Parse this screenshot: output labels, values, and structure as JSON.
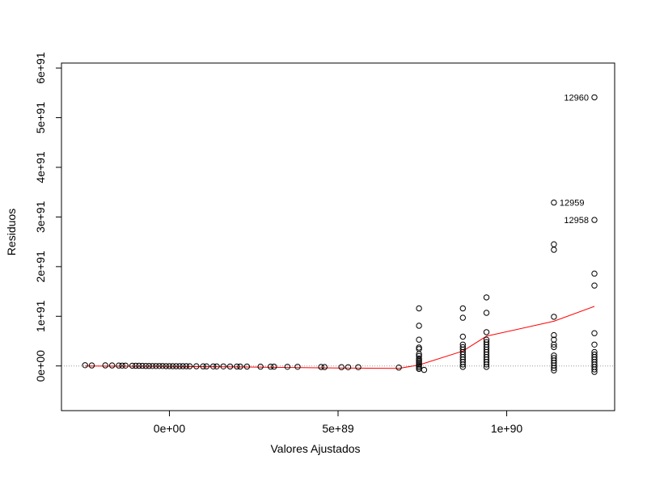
{
  "chart_data": {
    "type": "scatter",
    "title": "",
    "xlabel": "Valores Ajustados",
    "ylabel": "Residuos",
    "xlim": [
      -3.2e+89,
      1.32e+90
    ],
    "ylim": [
      -9e+90,
      6.1e+91
    ],
    "x_ticks": [
      {
        "value": 0,
        "label": "0e+00"
      },
      {
        "value": 5e+89,
        "label": "5e+89"
      },
      {
        "value": 1e+90,
        "label": "1e+90"
      }
    ],
    "y_ticks": [
      {
        "value": 0,
        "label": "0e+00"
      },
      {
        "value": 1e+91,
        "label": "1e+91"
      },
      {
        "value": 2e+91,
        "label": "2e+91"
      },
      {
        "value": 3e+91,
        "label": "3e+91"
      },
      {
        "value": 4e+91,
        "label": "4e+91"
      },
      {
        "value": 5e+91,
        "label": "5e+91"
      },
      {
        "value": 6e+91,
        "label": "6e+91"
      }
    ],
    "reference_line": {
      "y": 0,
      "style": "dotted",
      "color": "#999999"
    },
    "smoother": {
      "color": "#ff0000",
      "x": [
        -2.5e+89,
        0,
        2e+89,
        5e+89,
        6.8e+89,
        7.4e+89,
        8.7e+89,
        9.4e+89,
        1.14e+90,
        1.26e+90
      ],
      "y": [
        0,
        -1e+89,
        -2e+89,
        -4e+89,
        -5e+89,
        2e+89,
        3e+90,
        6e+90,
        9e+90,
        1.2e+91
      ]
    },
    "points": [
      {
        "x": -2.5e+89,
        "y": 1.5e+89
      },
      {
        "x": -2.3e+89,
        "y": 1e+89
      },
      {
        "x": -1.9e+89,
        "y": 1.2e+89
      },
      {
        "x": -1.7e+89,
        "y": 1e+89
      },
      {
        "x": -1.5e+89,
        "y": 8e+88
      },
      {
        "x": -1.4e+89,
        "y": 7e+88
      },
      {
        "x": -1.3e+89,
        "y": 6e+88
      },
      {
        "x": -1.1e+89,
        "y": 5e+88
      },
      {
        "x": -1e+89,
        "y": 4e+88
      },
      {
        "x": -9e+88,
        "y": 3e+88
      },
      {
        "x": -8e+88,
        "y": 2e+88
      },
      {
        "x": -7e+88,
        "y": 1e+88
      },
      {
        "x": -6e+88,
        "y": 0
      },
      {
        "x": -5e+88,
        "y": -1e+88
      },
      {
        "x": -4e+88,
        "y": -2e+88
      },
      {
        "x": -3e+88,
        "y": -1e+88
      },
      {
        "x": -2e+88,
        "y": -2e+88
      },
      {
        "x": -1e+88,
        "y": -3e+88
      },
      {
        "x": 0,
        "y": -3e+88
      },
      {
        "x": 1e+88,
        "y": -4e+88
      },
      {
        "x": 2e+88,
        "y": -4e+88
      },
      {
        "x": 3e+88,
        "y": -5e+88
      },
      {
        "x": 4e+88,
        "y": -5e+88
      },
      {
        "x": 5e+88,
        "y": -5e+88
      },
      {
        "x": 6e+88,
        "y": -6e+88
      },
      {
        "x": 8e+88,
        "y": -7e+88
      },
      {
        "x": 1e+89,
        "y": -8e+88
      },
      {
        "x": 1.1e+89,
        "y": -8e+88
      },
      {
        "x": 1.3e+89,
        "y": -9e+88
      },
      {
        "x": 1.4e+89,
        "y": -9e+88
      },
      {
        "x": 1.6e+89,
        "y": -1e+89
      },
      {
        "x": 1.8e+89,
        "y": -1.1e+89
      },
      {
        "x": 2e+89,
        "y": -1.1e+89
      },
      {
        "x": 2.1e+89,
        "y": -1.2e+89
      },
      {
        "x": 2.3e+89,
        "y": -1.2e+89
      },
      {
        "x": 2.7e+89,
        "y": -1.4e+89
      },
      {
        "x": 3e+89,
        "y": -1.5e+89
      },
      {
        "x": 3.1e+89,
        "y": -1.5e+89
      },
      {
        "x": 3.5e+89,
        "y": -1.7e+89
      },
      {
        "x": 3.8e+89,
        "y": -1.8e+89
      },
      {
        "x": 4.5e+89,
        "y": -2.1e+89
      },
      {
        "x": 4.6e+89,
        "y": -2.2e+89
      },
      {
        "x": 5.1e+89,
        "y": -2.4e+89
      },
      {
        "x": 5.3e+89,
        "y": -2.5e+89
      },
      {
        "x": 5.6e+89,
        "y": -2.6e+89
      },
      {
        "x": 6.8e+89,
        "y": -3.3e+89
      },
      {
        "x": 7.4e+89,
        "y": 1.16e+91
      },
      {
        "x": 7.4e+89,
        "y": 8.1e+90
      },
      {
        "x": 7.4e+89,
        "y": 5.3e+90
      },
      {
        "x": 7.4e+89,
        "y": 3.7e+90
      },
      {
        "x": 7.4e+89,
        "y": 3.4e+90
      },
      {
        "x": 7.4e+89,
        "y": 2.4e+90
      },
      {
        "x": 7.4e+89,
        "y": 2e+90
      },
      {
        "x": 7.4e+89,
        "y": 1.5e+90
      },
      {
        "x": 7.4e+89,
        "y": 1.2e+90
      },
      {
        "x": 7.4e+89,
        "y": 9e+89
      },
      {
        "x": 7.4e+89,
        "y": 6e+89
      },
      {
        "x": 7.4e+89,
        "y": 3e+89
      },
      {
        "x": 7.4e+89,
        "y": 0
      },
      {
        "x": 7.4e+89,
        "y": -3e+89
      },
      {
        "x": 7.4e+89,
        "y": -6e+89
      },
      {
        "x": 7.55e+89,
        "y": -8e+89
      },
      {
        "x": 8.7e+89,
        "y": 1.16e+91
      },
      {
        "x": 8.7e+89,
        "y": 9.7e+90
      },
      {
        "x": 8.7e+89,
        "y": 5.9e+90
      },
      {
        "x": 8.7e+89,
        "y": 4.3e+90
      },
      {
        "x": 8.7e+89,
        "y": 3.8e+90
      },
      {
        "x": 8.7e+89,
        "y": 3.3e+90
      },
      {
        "x": 8.7e+89,
        "y": 2.8e+90
      },
      {
        "x": 8.7e+89,
        "y": 2.3e+90
      },
      {
        "x": 8.7e+89,
        "y": 1.8e+90
      },
      {
        "x": 8.7e+89,
        "y": 1.3e+90
      },
      {
        "x": 8.7e+89,
        "y": 8e+89
      },
      {
        "x": 8.7e+89,
        "y": 3e+89
      },
      {
        "x": 8.7e+89,
        "y": -2e+89
      },
      {
        "x": 9.4e+89,
        "y": 1.38e+91
      },
      {
        "x": 9.4e+89,
        "y": 1.07e+91
      },
      {
        "x": 9.4e+89,
        "y": 6.8e+90
      },
      {
        "x": 9.4e+89,
        "y": 5.3e+90
      },
      {
        "x": 9.4e+89,
        "y": 4.8e+90
      },
      {
        "x": 9.4e+89,
        "y": 4.3e+90
      },
      {
        "x": 9.4e+89,
        "y": 3.8e+90
      },
      {
        "x": 9.4e+89,
        "y": 3.3e+90
      },
      {
        "x": 9.4e+89,
        "y": 2.8e+90
      },
      {
        "x": 9.4e+89,
        "y": 2.3e+90
      },
      {
        "x": 9.4e+89,
        "y": 1.8e+90
      },
      {
        "x": 9.4e+89,
        "y": 1.3e+90
      },
      {
        "x": 9.4e+89,
        "y": 8e+89
      },
      {
        "x": 9.4e+89,
        "y": 3e+89
      },
      {
        "x": 9.4e+89,
        "y": -2e+89
      },
      {
        "x": 1.14e+90,
        "y": 3.29e+91
      },
      {
        "x": 1.14e+90,
        "y": 2.45e+91
      },
      {
        "x": 1.14e+90,
        "y": 2.34e+91
      },
      {
        "x": 1.14e+90,
        "y": 9.9e+90
      },
      {
        "x": 1.14e+90,
        "y": 6.2e+90
      },
      {
        "x": 1.14e+90,
        "y": 5.3e+90
      },
      {
        "x": 1.14e+90,
        "y": 4.3e+90
      },
      {
        "x": 1.14e+90,
        "y": 3.8e+90
      },
      {
        "x": 1.14e+90,
        "y": 2.1e+90
      },
      {
        "x": 1.14e+90,
        "y": 1.6e+90
      },
      {
        "x": 1.14e+90,
        "y": 1.1e+90
      },
      {
        "x": 1.14e+90,
        "y": 6e+89
      },
      {
        "x": 1.14e+90,
        "y": 1e+89
      },
      {
        "x": 1.14e+90,
        "y": -4e+89
      },
      {
        "x": 1.14e+90,
        "y": -9e+89
      },
      {
        "x": 1.26e+90,
        "y": 5.41e+91
      },
      {
        "x": 1.26e+90,
        "y": 2.94e+91
      },
      {
        "x": 1.26e+90,
        "y": 1.86e+91
      },
      {
        "x": 1.26e+90,
        "y": 1.62e+91
      },
      {
        "x": 1.26e+90,
        "y": 6.6e+90
      },
      {
        "x": 1.26e+90,
        "y": 4.3e+90
      },
      {
        "x": 1.26e+90,
        "y": 2.8e+90
      },
      {
        "x": 1.26e+90,
        "y": 2.3e+90
      },
      {
        "x": 1.26e+90,
        "y": 1.8e+90
      },
      {
        "x": 1.26e+90,
        "y": 1.3e+90
      },
      {
        "x": 1.26e+90,
        "y": 8e+89
      },
      {
        "x": 1.26e+90,
        "y": 3e+89
      },
      {
        "x": 1.26e+90,
        "y": -2e+89
      },
      {
        "x": 1.26e+90,
        "y": -7e+89
      },
      {
        "x": 1.26e+90,
        "y": -1.2e+90
      }
    ],
    "annotations": [
      {
        "text": "12960",
        "x": 1.26e+90,
        "y": 5.41e+91,
        "side": "left"
      },
      {
        "text": "12959",
        "x": 1.14e+90,
        "y": 3.29e+91,
        "side": "right"
      },
      {
        "text": "12958",
        "x": 1.26e+90,
        "y": 2.94e+91,
        "side": "left"
      }
    ]
  }
}
